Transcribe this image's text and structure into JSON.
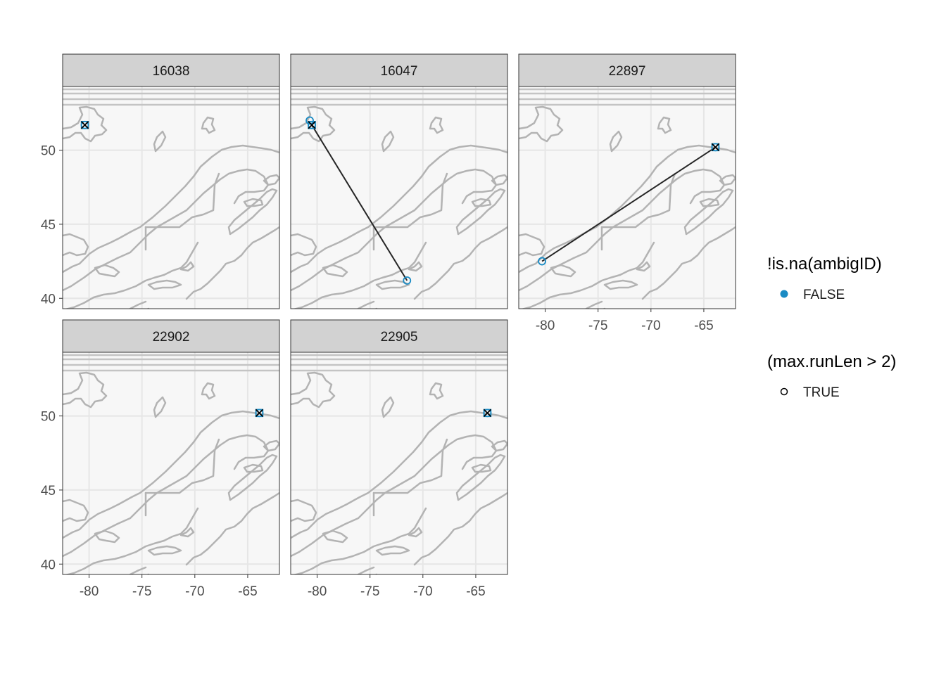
{
  "chart_data": {
    "type": "scatter",
    "facet_by": "tag",
    "xlim": [
      -82.5,
      -62
    ],
    "ylim": [
      39.3,
      54.3
    ],
    "x_ticks": [
      -80,
      -75,
      -70,
      -65
    ],
    "x_tick_labels": [
      "-80",
      "-75",
      "-70",
      "-65"
    ],
    "y_ticks": [
      40,
      45,
      50
    ],
    "y_tick_labels": [
      "40",
      "45",
      "50"
    ],
    "xlabel": "",
    "ylabel": "",
    "grid": true,
    "facets": [
      {
        "label": "16038",
        "track": [
          [
            -80.4,
            51.7
          ]
        ],
        "points": [
          {
            "x": -80.4,
            "y": 51.7,
            "ambig": "FALSE"
          }
        ],
        "crosses": [
          [
            -80.4,
            51.7
          ]
        ]
      },
      {
        "label": "16047",
        "track": [
          [
            -80.5,
            51.7
          ],
          [
            -71.5,
            41.2
          ]
        ],
        "points": [
          {
            "x": -80.7,
            "y": 52.0,
            "ambig": "FALSE"
          },
          {
            "x": -80.5,
            "y": 51.7,
            "ambig": "FALSE"
          },
          {
            "x": -71.5,
            "y": 41.2,
            "ambig": "FALSE"
          }
        ],
        "crosses": [
          [
            -80.5,
            51.7
          ]
        ]
      },
      {
        "label": "22897",
        "track": [
          [
            -80.3,
            42.5
          ],
          [
            -63.9,
            50.2
          ]
        ],
        "points": [
          {
            "x": -80.3,
            "y": 42.5,
            "ambig": "FALSE"
          },
          {
            "x": -63.9,
            "y": 50.2,
            "ambig": "FALSE"
          }
        ],
        "crosses": [
          [
            -63.9,
            50.2
          ]
        ]
      },
      {
        "label": "22902",
        "track": [
          [
            -63.9,
            50.2
          ]
        ],
        "points": [
          {
            "x": -63.9,
            "y": 50.2,
            "ambig": "FALSE"
          }
        ],
        "crosses": [
          [
            -63.9,
            50.2
          ]
        ]
      },
      {
        "label": "22905",
        "track": [
          [
            -63.9,
            50.2
          ]
        ],
        "points": [
          {
            "x": -63.9,
            "y": 50.2,
            "ambig": "FALSE"
          }
        ],
        "crosses": [
          [
            -63.9,
            50.2
          ]
        ]
      }
    ],
    "legend": {
      "placement": "right",
      "groups": [
        {
          "title": "!is.na(ambigID)",
          "entries": [
            {
              "label": "FALSE",
              "symbol": "filled-circle",
              "color": "#1a8bc4"
            }
          ]
        },
        {
          "title": "(max.runLen > 2)",
          "entries": [
            {
              "label": "TRUE",
              "symbol": "open-circle",
              "color": "#000000"
            }
          ]
        }
      ]
    },
    "colors": {
      "point": "#1a8bc4",
      "track": "#262626",
      "coast": "#b3b3b3",
      "grid": "#e6e6e6",
      "panel_bg": "#f7f7f7",
      "strip_bg": "#d2d2d2"
    }
  }
}
